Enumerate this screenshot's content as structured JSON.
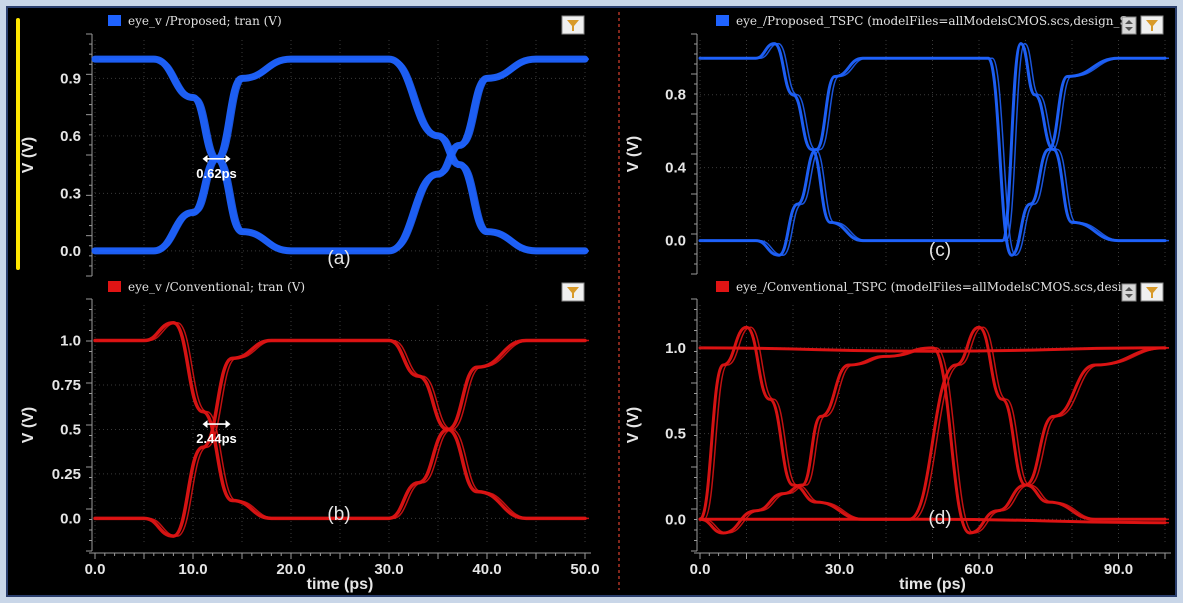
{
  "colors": {
    "proposed": "#1f63ff",
    "conventional": "#e01414",
    "background": "#000000",
    "grid": "#3a3a3a",
    "divider": "#c93a2a",
    "selection_bar": "#ffe600",
    "filter_button": "#d89a2a"
  },
  "chart_data": [
    {
      "id": "a",
      "type": "line",
      "panel_label": "(a)",
      "legend": "eye_v /Proposed; tran (V)",
      "ylabel": "V (V)",
      "xlabel": "",
      "xlim": [
        0,
        50
      ],
      "ylim": [
        -0.1,
        1.1
      ],
      "yticks": [
        "0.0",
        "0.3",
        "0.6",
        "0.9"
      ],
      "ytick_values": [
        0.0,
        0.3,
        0.6,
        0.9
      ],
      "grid": true,
      "color": "proposed",
      "annotation": {
        "text": "0.62ps",
        "x": 12.4,
        "y": 0.48
      },
      "series": [
        {
          "name": "eye_v /Proposed; tran (V)",
          "x": [
            0,
            6,
            10,
            12.4,
            15,
            20,
            25,
            30,
            35,
            37.2,
            40,
            45,
            50
          ],
          "values": [
            1.0,
            1.0,
            0.8,
            0.48,
            0.1,
            0.0,
            0.0,
            0.0,
            0.4,
            0.55,
            0.9,
            1.0,
            1.0
          ]
        },
        {
          "name": "eye_v /Proposed; tran (V)",
          "x": [
            0,
            6,
            10,
            12.4,
            15,
            20,
            25,
            30,
            35,
            37.2,
            40,
            45,
            50
          ],
          "values": [
            0.0,
            0.0,
            0.2,
            0.48,
            0.9,
            1.0,
            1.0,
            1.0,
            0.6,
            0.45,
            0.1,
            0.0,
            0.0
          ]
        }
      ]
    },
    {
      "id": "b",
      "type": "line",
      "panel_label": "(b)",
      "legend": "eye_v /Conventional; tran (V)",
      "ylabel": "V (V)",
      "xlabel": "time (ps)",
      "xlim": [
        0,
        50
      ],
      "ylim": [
        -0.15,
        1.2
      ],
      "yticks": [
        "0.0",
        "0.25",
        "0.5",
        "0.75",
        "1.0"
      ],
      "ytick_values": [
        0.0,
        0.25,
        0.5,
        0.75,
        1.0
      ],
      "xticks": [
        "0.0",
        "10.0",
        "20.0",
        "30.0",
        "40.0",
        "50.0"
      ],
      "xtick_values": [
        0,
        10,
        20,
        30,
        40,
        50
      ],
      "grid": true,
      "color": "conventional",
      "annotation": {
        "text": "2.44ps",
        "x": 12.4,
        "y": 0.53
      },
      "series": [
        {
          "name": "eye_v /Conventional; tran (V)",
          "x": [
            0,
            5,
            8,
            11,
            14,
            18,
            25,
            30,
            33,
            36,
            39,
            44,
            50
          ],
          "values": [
            1.0,
            1.0,
            1.1,
            0.6,
            0.1,
            0.0,
            0.0,
            0.0,
            0.2,
            0.5,
            0.85,
            1.0,
            1.0
          ]
        },
        {
          "name": "eye_v /Conventional; tran (V)",
          "x": [
            0,
            5,
            8,
            11,
            14,
            18,
            25,
            30,
            33,
            36,
            39,
            44,
            50
          ],
          "values": [
            0.0,
            0.0,
            -0.1,
            0.4,
            0.9,
            1.0,
            1.0,
            1.0,
            0.8,
            0.5,
            0.15,
            0.0,
            0.0
          ]
        }
      ]
    },
    {
      "id": "c",
      "type": "line",
      "panel_label": "(c)",
      "legend": "eye_/Proposed_TSPC (modelFiles=allModelsCMOS.scs,design_S",
      "ylabel": "V (V)",
      "xlabel": "",
      "xlim": [
        0,
        100
      ],
      "ylim": [
        -0.15,
        1.1
      ],
      "yticks": [
        "0.0",
        "0.4",
        "0.8"
      ],
      "ytick_values": [
        0.0,
        0.4,
        0.8
      ],
      "grid": true,
      "color": "proposed",
      "series": [
        {
          "name": "eye_/Proposed_TSPC (modelFiles=allModelsCMOS.scs,design_S",
          "x": [
            0,
            12,
            16,
            20,
            24,
            28,
            35,
            45,
            55,
            65,
            69,
            72,
            76,
            80,
            90,
            100
          ],
          "values": [
            1.0,
            1.0,
            1.08,
            0.8,
            0.5,
            0.1,
            0.0,
            0.0,
            0.0,
            0.0,
            1.08,
            0.8,
            0.5,
            0.1,
            0.0,
            0.0
          ]
        },
        {
          "name": "eye_/Proposed_TSPC (modelFiles=allModelsCMOS.scs,design_S",
          "x": [
            0,
            12,
            17,
            21,
            25,
            29,
            35,
            45,
            55,
            62,
            67,
            71,
            75,
            79,
            90,
            100
          ],
          "values": [
            0.0,
            0.0,
            -0.08,
            0.2,
            0.5,
            0.9,
            1.0,
            1.0,
            1.0,
            1.0,
            -0.08,
            0.2,
            0.5,
            0.9,
            1.0,
            1.0
          ]
        }
      ]
    },
    {
      "id": "d",
      "type": "line",
      "panel_label": "(d)",
      "legend": "eye_/Conventional_TSPC (modelFiles=allModelsCMOS.scs,desig",
      "ylabel": "V (V)",
      "xlabel": "time (ps)",
      "xlim": [
        0,
        100
      ],
      "ylim": [
        -0.15,
        1.25
      ],
      "yticks": [
        "0.0",
        "0.5",
        "1.0"
      ],
      "ytick_values": [
        0.0,
        0.5,
        1.0
      ],
      "xticks": [
        "0.0",
        "30.0",
        "60.0",
        "90.0"
      ],
      "xtick_values": [
        0,
        30,
        60,
        90
      ],
      "grid": true,
      "color": "conventional",
      "series": [
        {
          "name": "eye_/Conventional_TSPC (modelFiles=allModelsCMOS.scs,desig",
          "x": [
            0,
            5,
            10,
            15,
            20,
            25,
            35,
            45,
            55,
            60,
            65,
            70,
            75,
            85,
            100
          ],
          "values": [
            0.0,
            0.9,
            1.12,
            0.7,
            0.2,
            0.1,
            0.0,
            0.0,
            0.9,
            1.12,
            0.7,
            0.2,
            0.1,
            0.0,
            0.0
          ]
        },
        {
          "name": "eye_/Conventional_TSPC (modelFiles=allModelsCMOS.scs,desig",
          "x": [
            0,
            5,
            12,
            18,
            22,
            26,
            32,
            40,
            50,
            58,
            64,
            70,
            76,
            85,
            100
          ],
          "values": [
            0.0,
            -0.08,
            0.05,
            0.15,
            0.2,
            0.6,
            0.9,
            0.95,
            1.0,
            -0.08,
            0.05,
            0.2,
            0.6,
            0.9,
            1.0
          ]
        },
        {
          "name": "eye_/Conventional_TSPC (modelFiles=allModelsCMOS.scs,desig",
          "x": [
            0,
            50,
            100
          ],
          "values": [
            1.0,
            0.98,
            1.0
          ]
        },
        {
          "name": "eye_/Conventional_TSPC (modelFiles=allModelsCMOS.scs,desig",
          "x": [
            0,
            50,
            100
          ],
          "values": [
            0.0,
            0.0,
            -0.02
          ]
        }
      ]
    }
  ]
}
